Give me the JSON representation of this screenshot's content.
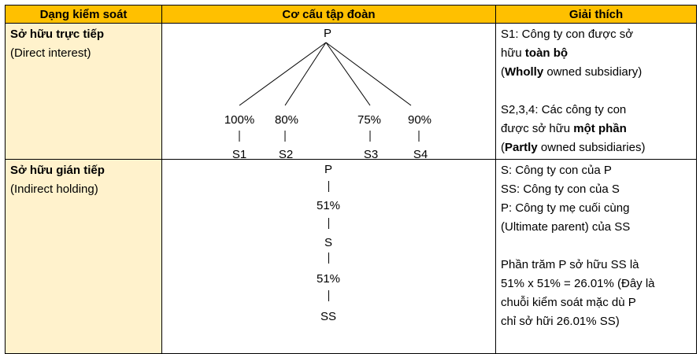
{
  "headers": {
    "control_type": "Dạng kiểm soát",
    "group_structure": "Cơ cấu tập đoàn",
    "explanation": "Giải thích"
  },
  "rows": [
    {
      "type_title": "Sở hữu trực tiếp",
      "type_sub": "(Direct interest)",
      "diagram": {
        "parent": "P",
        "children": [
          {
            "pct": "100%",
            "name": "S1"
          },
          {
            "pct": "80%",
            "name": "S2"
          },
          {
            "pct": "75%",
            "name": "S3"
          },
          {
            "pct": "90%",
            "name": "S4"
          }
        ]
      },
      "explanation": {
        "p1_line1": "S1: Công ty con được sở",
        "p1_line2_pre": "hữu ",
        "p1_line2_bold": "toàn bộ",
        "p1_line3_open": "(",
        "p1_line3_bold": "Wholly",
        "p1_line3_rest": " owned subsidiary)",
        "p2_line1": "S2,3,4: Các công ty con",
        "p2_line2_pre": "được sở hữu ",
        "p2_line2_bold": "một phần",
        "p2_line3_open": "(",
        "p2_line3_bold": "Partly",
        "p2_line3_rest": " owned subsidiaries)"
      }
    },
    {
      "type_title": "Sở hữu gián tiếp",
      "type_sub": "(Indirect holding)",
      "diagram": {
        "chain": [
          "P",
          "51%",
          "S",
          "51%",
          "SS"
        ]
      },
      "explanation": {
        "line1": "S: Công ty con của P",
        "line2": "SS: Công ty con của S",
        "line3": "P: Công ty mẹ cuối cùng",
        "line4": "(Ultimate parent) của SS",
        "line5": "Phần trăm P sở hữu SS là",
        "line6": "51% x 51% = 26.01% (Đây là",
        "line7": "chuỗi kiểm soát mặc dù P",
        "line8": "chỉ sở hữi 26.01% SS)"
      }
    }
  ]
}
